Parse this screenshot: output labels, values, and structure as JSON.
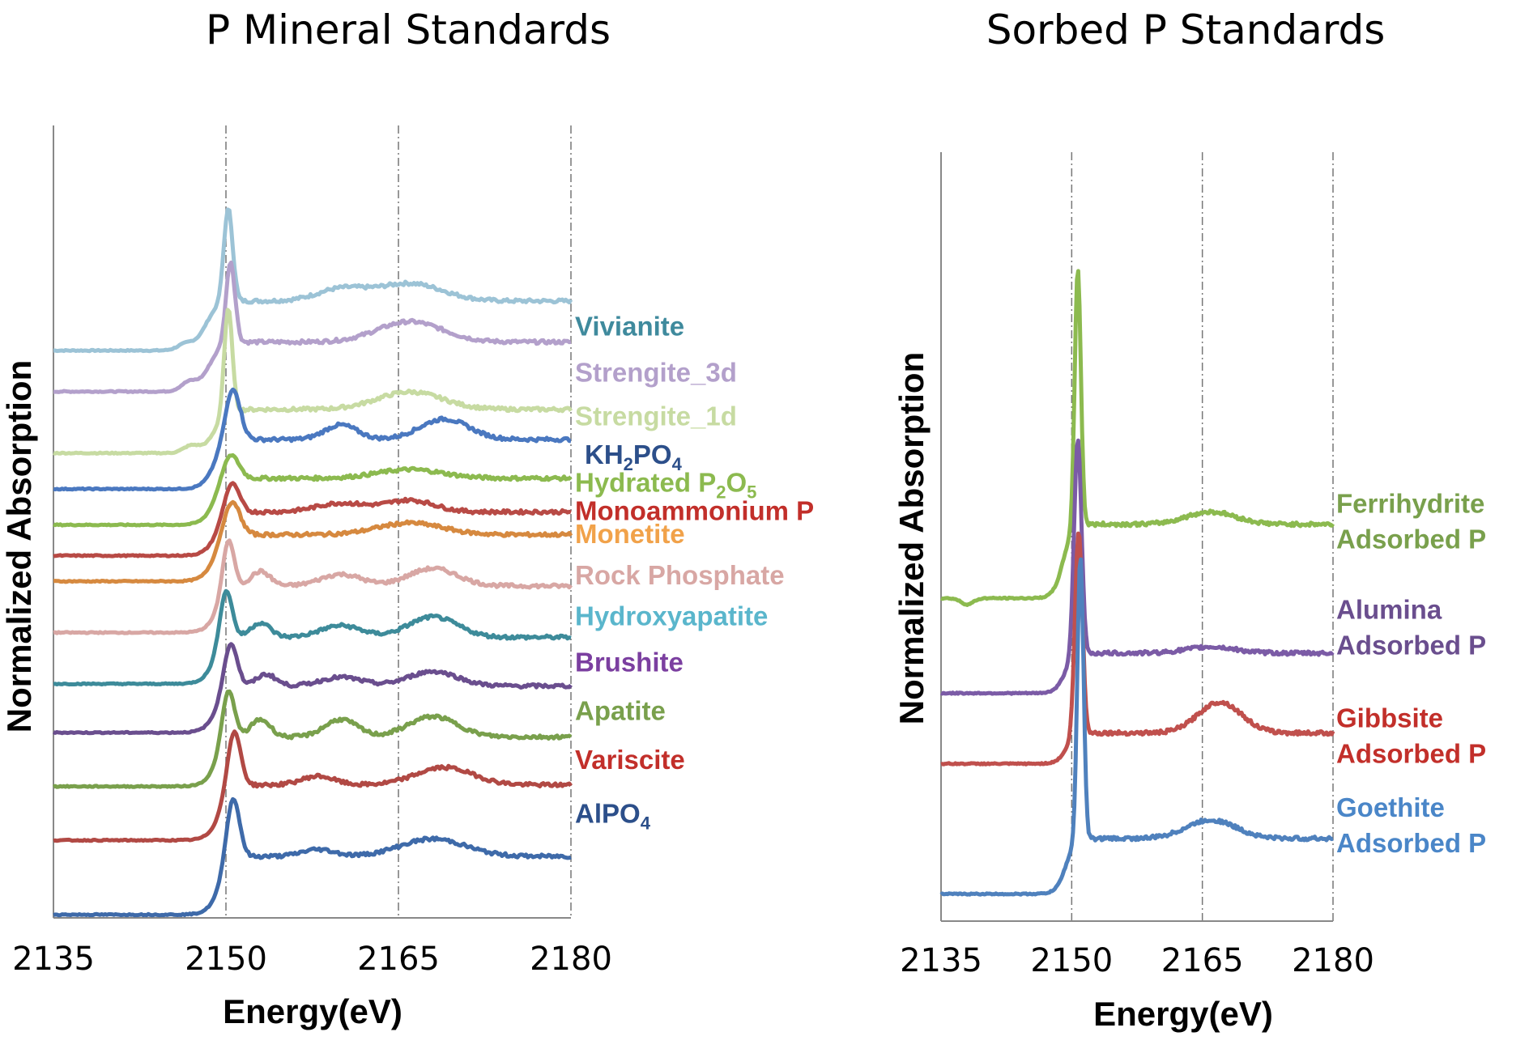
{
  "chart_data": [
    {
      "type": "line",
      "title": "P Mineral Standards",
      "xlabel": "Energy(eV)",
      "ylabel": "Normalized Absorption",
      "xlim": [
        2135,
        2180
      ],
      "xticks": [
        "2135",
        "2150",
        "2165",
        "2180"
      ],
      "gridlines_x": [
        2150,
        2165,
        2180
      ],
      "series": [
        {
          "name": "Vivianite",
          "color": "#9cc3d6",
          "label_color": "#3f8a9d",
          "offset": 11.0,
          "label_y": 10.1,
          "edge": 2148.2,
          "peak_x": 2150.2,
          "peak_h": 1.6,
          "peak_w": 0.55,
          "features": [
            [
              2160,
              0.2,
              3
            ],
            [
              2166,
              0.3,
              4
            ]
          ],
          "pre": [
            [
              2146.5,
              0.1,
              1.0
            ]
          ],
          "post": 0.85
        },
        {
          "name": "Strengite_3d",
          "color": "#b3a0cb",
          "label_color": "#b3a0cb",
          "offset": 10.2,
          "label_y": 9.2,
          "edge": 2148.5,
          "peak_x": 2150.4,
          "peak_h": 1.4,
          "peak_w": 0.55,
          "features": [
            [
              2166,
              0.35,
              4
            ]
          ],
          "pre": [
            [
              2146.8,
              0.15,
              1.0
            ]
          ],
          "post": 0.85
        },
        {
          "name": "Strengite_1d",
          "color": "#c7dba2",
          "label_color": "#c7dba2",
          "offset": 9.0,
          "label_y": 8.35,
          "edge": 2149.0,
          "peak_x": 2150.2,
          "peak_h": 1.8,
          "peak_w": 0.5,
          "features": [
            [
              2166,
              0.3,
              4
            ]
          ],
          "pre": [
            [
              2147.0,
              0.12,
              1.0
            ]
          ],
          "post": 0.75
        },
        {
          "name": "KH2PO4",
          "label_sub": "2",
          "label_after": "PO",
          "label_sub2": "4",
          "label_prefix": "KH",
          "color": "#4a78c0",
          "label_color": "#2c4f8a",
          "offset": 8.3,
          "label_y": 7.6,
          "edge": 2149.0,
          "peak_x": 2150.6,
          "peak_h": 0.9,
          "peak_w": 0.9,
          "features": [
            [
              2160,
              0.25,
              2
            ],
            [
              2169,
              0.35,
              3
            ]
          ],
          "pre": [],
          "post": 0.85
        },
        {
          "name": "Hydrated P2O5",
          "label_prefix": "Hydrated P",
          "label_sub": "2",
          "label_after": "O",
          "label_sub2": "5",
          "color": "#8cba4f",
          "label_color": "#8cba4f",
          "offset": 7.6,
          "label_y": 7.05,
          "edge": 2149.0,
          "peak_x": 2150.4,
          "peak_h": 0.45,
          "peak_w": 1.0,
          "features": [
            [
              2166,
              0.15,
              4
            ]
          ],
          "pre": [],
          "post": 0.8
        },
        {
          "name": "Monoammonium P",
          "color": "#b84a45",
          "label_color": "#c22f2a",
          "offset": 7.0,
          "label_y": 6.5,
          "edge": 2149.2,
          "peak_x": 2150.5,
          "peak_h": 0.55,
          "peak_w": 0.9,
          "features": [
            [
              2160,
              0.15,
              3
            ],
            [
              2166,
              0.2,
              3
            ]
          ],
          "pre": [],
          "post": 0.75
        },
        {
          "name": "Monetite",
          "color": "#d6893f",
          "label_color": "#f1a24a",
          "offset": 6.5,
          "label_y": 6.05,
          "edge": 2149.0,
          "peak_x": 2150.5,
          "peak_h": 0.6,
          "peak_w": 1.0,
          "features": [
            [
              2166,
              0.2,
              4
            ]
          ],
          "pre": [],
          "post": 0.8
        },
        {
          "name": "Rock Phosphate",
          "color": "#d8a7a4",
          "label_color": "#d8a7a4",
          "offset": 5.5,
          "label_y": 5.25,
          "edge": 2149.3,
          "peak_x": 2150.2,
          "peak_h": 0.9,
          "peak_w": 0.7,
          "features": [
            [
              2153,
              0.25,
              1.2
            ],
            [
              2160,
              0.2,
              2.5
            ],
            [
              2168,
              0.3,
              3
            ]
          ],
          "pre": [],
          "post": 0.8
        },
        {
          "name": "Hydroxyapatite",
          "color": "#3d8b9a",
          "label_color": "#5ab6cc",
          "offset": 4.5,
          "label_y": 4.45,
          "edge": 2149.0,
          "peak_x": 2150.0,
          "peak_h": 0.9,
          "peak_w": 0.75,
          "features": [
            [
              2153,
              0.25,
              1.2
            ],
            [
              2160,
              0.2,
              2.5
            ],
            [
              2168,
              0.35,
              3
            ]
          ],
          "pre": [],
          "post": 0.8
        },
        {
          "name": "Brushite",
          "color": "#6a4e8e",
          "label_color": "#7b3fa0",
          "offset": 3.55,
          "label_y": 3.55,
          "edge": 2149.2,
          "peak_x": 2150.4,
          "peak_h": 0.8,
          "peak_w": 0.8,
          "features": [
            [
              2153.5,
              0.2,
              1.2
            ],
            [
              2160,
              0.15,
              2.5
            ],
            [
              2168,
              0.25,
              3
            ]
          ],
          "pre": [],
          "post": 0.8
        },
        {
          "name": "Apatite",
          "color": "#79a04c",
          "label_color": "#79a04c",
          "offset": 2.5,
          "label_y": 2.6,
          "edge": 2149.2,
          "peak_x": 2150.2,
          "peak_h": 0.9,
          "peak_w": 0.75,
          "features": [
            [
              2153,
              0.3,
              1.2
            ],
            [
              2160,
              0.3,
              2
            ],
            [
              2168,
              0.35,
              3
            ]
          ],
          "pre": [],
          "post": 0.85
        },
        {
          "name": "Variscite",
          "color": "#b14944",
          "label_color": "#c22f2a",
          "offset": 1.45,
          "label_y": 1.65,
          "edge": 2149.5,
          "peak_x": 2150.7,
          "peak_h": 1.0,
          "peak_w": 0.8,
          "features": [
            [
              2158,
              0.15,
              2
            ],
            [
              2169,
              0.3,
              3.5
            ]
          ],
          "pre": [],
          "post": 0.95
        },
        {
          "name": "AlPO4",
          "label_prefix": "AlPO",
          "label_sub": "4",
          "color": "#3e6aa9",
          "label_color": "#2c4f8a",
          "offset": 0.0,
          "label_y": 0.6,
          "edge": 2149.5,
          "peak_x": 2150.6,
          "peak_h": 1.1,
          "peak_w": 0.8,
          "features": [
            [
              2158,
              0.12,
              2
            ],
            [
              2168,
              0.3,
              4
            ]
          ],
          "pre": [],
          "post": 1.0
        }
      ],
      "ylim": [
        0,
        12.5
      ]
    },
    {
      "type": "line",
      "title": "Sorbed P Standards",
      "xlabel": "Energy(eV)",
      "ylabel": "Normalized  Absorption",
      "xlim": [
        2135,
        2180
      ],
      "xticks": [
        "2135",
        "2150",
        "2165",
        "2180"
      ],
      "gridlines_x": [
        2150,
        2165,
        2180
      ],
      "series": [
        {
          "name": "Ferrihydrite Adsorbed P",
          "label_lines": [
            "Ferrihydrite",
            "Adsorbed P"
          ],
          "color": "#8cba4f",
          "label_color": "#79a04c",
          "offset": 5.95,
          "label_y": 6.5,
          "edge": 2149.0,
          "peak_x": 2150.7,
          "peak_h": 4.2,
          "peak_w": 0.5,
          "features": [
            [
              2166,
              0.2,
              4
            ]
          ],
          "pre": [
            [
              2138,
              -0.1,
              1
            ]
          ],
          "post": 1.2
        },
        {
          "name": "Alumina Adsorbed P",
          "label_lines": [
            "Alumina",
            "Adsorbed P"
          ],
          "color": "#7b5ba6",
          "label_color": "#6a4e8e",
          "offset": 4.2,
          "label_y": 4.55,
          "edge": 2149.2,
          "peak_x": 2150.7,
          "peak_h": 3.5,
          "peak_w": 0.6,
          "features": [
            [
              2166,
              0.1,
              4
            ]
          ],
          "pre": [],
          "post": 0.65
        },
        {
          "name": "Gibbsite Adsorbed P",
          "label_lines": [
            "Gibbsite",
            "Adsorbed P"
          ],
          "color": "#c0504d",
          "label_color": "#c22f2a",
          "offset": 2.9,
          "label_y": 2.55,
          "edge": 2149.4,
          "peak_x": 2150.8,
          "peak_h": 3.3,
          "peak_w": 0.6,
          "features": [
            [
              2167,
              0.5,
              3.5
            ]
          ],
          "pre": [],
          "post": 0.5
        },
        {
          "name": "Goethite Adsorbed P",
          "label_lines": [
            "Goethite",
            "  Adsorbed P"
          ],
          "color": "#4f81bd",
          "label_color": "#4a86c8",
          "offset": 0.5,
          "label_y": 0.9,
          "edge": 2149.3,
          "peak_x": 2151.0,
          "peak_h": 4.6,
          "peak_w": 0.5,
          "features": [
            [
              2166,
              0.3,
              4
            ]
          ],
          "pre": [],
          "post": 0.9
        }
      ],
      "ylim": [
        0,
        11
      ]
    }
  ]
}
